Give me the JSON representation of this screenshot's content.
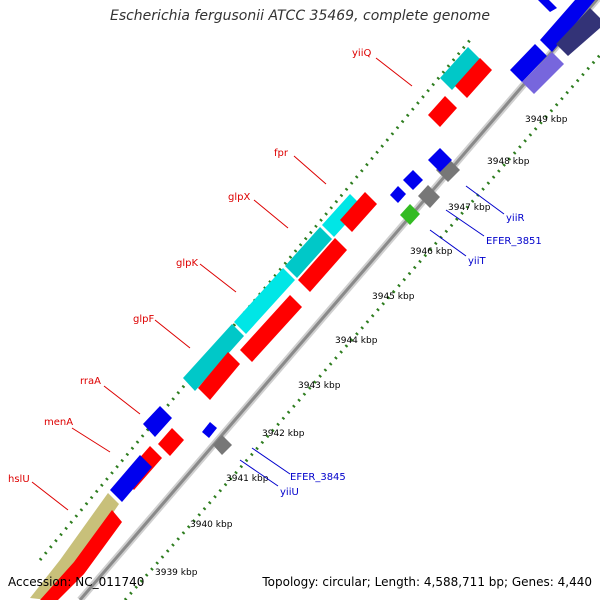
{
  "title": "Escherichia fergusonii ATCC 35469, complete genome",
  "footer": {
    "accession": "Accession: NC_011740",
    "summary": "Topology: circular; Length: 4,588,711 bp; Genes: 4,440"
  },
  "colors": {
    "backbone": "#909090",
    "tick": "#2e7d1f",
    "cds_forward": "#ff0000",
    "cds_reverse": "#0000ee",
    "rna": "#00d8d8",
    "pseudo": "#777777",
    "other": "#33bb22",
    "label_forward": "#dd0000",
    "label_reverse": "#0000cc",
    "tick_label": "#000000"
  },
  "scale_labels": [
    {
      "kbp": 3939,
      "text": "3939 kbp"
    },
    {
      "kbp": 3940,
      "text": "3940 kbp"
    },
    {
      "kbp": 3941,
      "text": "3941 kbp"
    },
    {
      "kbp": 3942,
      "text": "3942 kbp"
    },
    {
      "kbp": 3943,
      "text": "3943 kbp"
    },
    {
      "kbp": 3944,
      "text": "3944 kbp"
    },
    {
      "kbp": 3945,
      "text": "3945 kbp"
    },
    {
      "kbp": 3946,
      "text": "3946 kbp"
    },
    {
      "kbp": 3947,
      "text": "3947 kbp"
    },
    {
      "kbp": 3948,
      "text": "3948 kbp"
    },
    {
      "kbp": 3949,
      "text": "3949 kbp"
    }
  ],
  "gene_labels": [
    {
      "name": "hslU",
      "strand": "forward"
    },
    {
      "name": "menA",
      "strand": "forward"
    },
    {
      "name": "rraA",
      "strand": "forward"
    },
    {
      "name": "glpF",
      "strand": "forward"
    },
    {
      "name": "glpK",
      "strand": "forward"
    },
    {
      "name": "glpX",
      "strand": "forward"
    },
    {
      "name": "fpr",
      "strand": "forward"
    },
    {
      "name": "yiiQ",
      "strand": "forward"
    },
    {
      "name": "yiiU",
      "strand": "reverse"
    },
    {
      "name": "EFER_3845",
      "strand": "reverse"
    },
    {
      "name": "yiiT",
      "strand": "reverse"
    },
    {
      "name": "EFER_3851",
      "strand": "reverse"
    },
    {
      "name": "yiiR",
      "strand": "reverse"
    }
  ]
}
